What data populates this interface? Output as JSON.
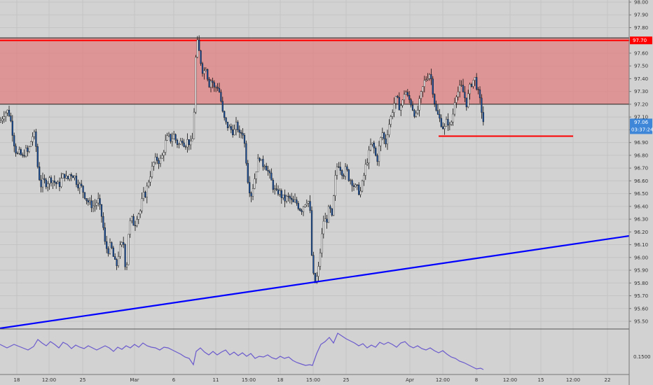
{
  "chart_data": {
    "type": "candlestick",
    "price_axis": {
      "ticks": [
        "98.00",
        "97.90",
        "97.80",
        "97.70",
        "97.60",
        "97.50",
        "97.40",
        "97.30",
        "97.20",
        "97.10",
        "97.00",
        "96.90",
        "96.80",
        "96.70",
        "96.60",
        "96.50",
        "96.40",
        "96.30",
        "96.20",
        "96.10",
        "96.00",
        "95.90",
        "95.80",
        "95.70",
        "95.60",
        "95.50"
      ],
      "range": [
        95.44,
        98.01
      ]
    },
    "time_axis": {
      "labels": [
        "18",
        "12:00",
        "25",
        "Mar",
        "6",
        "11",
        "15:00",
        "18",
        "15:00",
        "25",
        "Apr",
        "12:00",
        "8",
        "12:00",
        "15",
        "12:00",
        "22"
      ]
    },
    "last_price": {
      "value": "97.06",
      "countdown": "03:37:24",
      "color": "#3d86d8"
    },
    "zone": {
      "top": 97.72,
      "bottom": 97.2,
      "color": "#e08080"
    },
    "resistance_line": {
      "price": 97.7,
      "label": "97.70",
      "color": "#ff0000"
    },
    "support_segment": {
      "price": 96.95,
      "color": "#ff0000"
    },
    "trend_line": {
      "color": "#0000ff"
    },
    "oscillator": {
      "tick": "0.1500",
      "color": "#6a5acd"
    },
    "candles": {
      "up_color": "#ffffff",
      "down_color": "#1a4f9c",
      "points": [
        [
          0,
          97.06
        ],
        [
          6,
          97.13
        ],
        [
          12,
          97.15
        ],
        [
          16,
          97.05
        ],
        [
          20,
          96.9
        ],
        [
          24,
          96.8
        ],
        [
          28,
          96.82
        ],
        [
          32,
          96.78
        ],
        [
          36,
          96.84
        ],
        [
          40,
          96.82
        ],
        [
          46,
          96.95
        ],
        [
          50,
          96.96
        ],
        [
          54,
          96.7
        ],
        [
          58,
          96.56
        ],
        [
          62,
          96.6
        ],
        [
          66,
          96.58
        ],
        [
          72,
          96.62
        ],
        [
          78,
          96.59
        ],
        [
          84,
          96.56
        ],
        [
          88,
          96.62
        ],
        [
          92,
          96.65
        ],
        [
          96,
          96.6
        ],
        [
          100,
          96.66
        ],
        [
          106,
          96.64
        ],
        [
          110,
          96.58
        ],
        [
          116,
          96.55
        ],
        [
          120,
          96.5
        ],
        [
          124,
          96.45
        ],
        [
          128,
          96.42
        ],
        [
          134,
          96.4
        ],
        [
          140,
          96.45
        ],
        [
          146,
          96.3
        ],
        [
          150,
          96.1
        ],
        [
          154,
          96.05
        ],
        [
          158,
          96.1
        ],
        [
          162,
          96.0
        ],
        [
          166,
          95.92
        ],
        [
          170,
          96.06
        ],
        [
          176,
          96.12
        ],
        [
          180,
          95.86
        ],
        [
          184,
          96.25
        ],
        [
          188,
          96.3
        ],
        [
          192,
          96.25
        ],
        [
          196,
          96.34
        ],
        [
          200,
          96.36
        ],
        [
          204,
          96.48
        ],
        [
          208,
          96.5
        ],
        [
          212,
          96.6
        ],
        [
          216,
          96.68
        ],
        [
          220,
          96.75
        ],
        [
          224,
          96.77
        ],
        [
          228,
          96.75
        ],
        [
          232,
          96.8
        ],
        [
          236,
          96.9
        ],
        [
          240,
          96.95
        ],
        [
          244,
          96.92
        ],
        [
          248,
          96.96
        ],
        [
          252,
          96.9
        ],
        [
          256,
          96.88
        ],
        [
          260,
          96.93
        ],
        [
          264,
          96.88
        ],
        [
          268,
          96.92
        ],
        [
          272,
          96.88
        ],
        [
          276,
          96.95
        ],
        [
          278,
          97.35
        ],
        [
          280,
          97.65
        ],
        [
          282,
          97.68
        ],
        [
          286,
          97.55
        ],
        [
          290,
          97.44
        ],
        [
          294,
          97.5
        ],
        [
          298,
          97.35
        ],
        [
          302,
          97.4
        ],
        [
          306,
          97.32
        ],
        [
          310,
          97.35
        ],
        [
          314,
          97.28
        ],
        [
          318,
          97.12
        ],
        [
          322,
          97.05
        ],
        [
          326,
          97.02
        ],
        [
          330,
          97.0
        ],
        [
          334,
          96.98
        ],
        [
          338,
          97.05
        ],
        [
          342,
          96.95
        ],
        [
          346,
          97.0
        ],
        [
          350,
          96.85
        ],
        [
          354,
          96.6
        ],
        [
          358,
          96.48
        ],
        [
          362,
          96.58
        ],
        [
          366,
          96.7
        ],
        [
          370,
          96.8
        ],
        [
          374,
          96.72
        ],
        [
          378,
          96.74
        ],
        [
          382,
          96.68
        ],
        [
          386,
          96.62
        ],
        [
          390,
          96.55
        ],
        [
          394,
          96.5
        ],
        [
          398,
          96.52
        ],
        [
          402,
          96.48
        ],
        [
          406,
          96.45
        ],
        [
          410,
          96.47
        ],
        [
          414,
          96.46
        ],
        [
          418,
          96.42
        ],
        [
          422,
          96.44
        ],
        [
          426,
          96.4
        ],
        [
          430,
          96.37
        ],
        [
          434,
          96.42
        ],
        [
          438,
          96.45
        ],
        [
          442,
          96.43
        ],
        [
          446,
          95.88
        ],
        [
          450,
          95.8
        ],
        [
          454,
          95.88
        ],
        [
          458,
          96.1
        ],
        [
          462,
          96.3
        ],
        [
          466,
          96.28
        ],
        [
          470,
          96.4
        ],
        [
          474,
          96.3
        ],
        [
          478,
          96.6
        ],
        [
          482,
          96.75
        ],
        [
          486,
          96.7
        ],
        [
          490,
          96.65
        ],
        [
          494,
          96.7
        ],
        [
          498,
          96.62
        ],
        [
          502,
          96.6
        ],
        [
          506,
          96.55
        ],
        [
          510,
          96.54
        ],
        [
          514,
          96.5
        ],
        [
          518,
          96.6
        ],
        [
          522,
          96.72
        ],
        [
          526,
          96.8
        ],
        [
          530,
          96.9
        ],
        [
          534,
          96.85
        ],
        [
          538,
          96.75
        ],
        [
          542,
          96.9
        ],
        [
          546,
          96.98
        ],
        [
          550,
          96.88
        ],
        [
          554,
          97.02
        ],
        [
          558,
          97.1
        ],
        [
          562,
          97.2
        ],
        [
          566,
          97.25
        ],
        [
          570,
          97.18
        ],
        [
          574,
          97.2
        ],
        [
          578,
          97.32
        ],
        [
          582,
          97.25
        ],
        [
          586,
          97.22
        ],
        [
          590,
          97.15
        ],
        [
          594,
          97.1
        ],
        [
          598,
          97.2
        ],
        [
          602,
          97.3
        ],
        [
          606,
          97.38
        ],
        [
          610,
          97.42
        ],
        [
          614,
          97.45
        ],
        [
          618,
          97.3
        ],
        [
          622,
          97.15
        ],
        [
          626,
          97.1
        ],
        [
          630,
          97.05
        ],
        [
          634,
          97.0
        ],
        [
          638,
          97.08
        ],
        [
          642,
          97.02
        ],
        [
          646,
          97.1
        ],
        [
          650,
          97.28
        ],
        [
          654,
          97.3
        ],
        [
          658,
          97.34
        ],
        [
          662,
          97.28
        ],
        [
          666,
          97.2
        ],
        [
          670,
          97.32
        ],
        [
          674,
          97.38
        ],
        [
          678,
          97.4
        ],
        [
          682,
          97.3
        ],
        [
          686,
          97.2
        ],
        [
          690,
          97.06
        ]
      ]
    },
    "oscillator_points": [
      [
        0,
        492
      ],
      [
        10,
        497
      ],
      [
        20,
        492
      ],
      [
        30,
        496
      ],
      [
        40,
        500
      ],
      [
        48,
        495
      ],
      [
        54,
        485
      ],
      [
        60,
        490
      ],
      [
        66,
        494
      ],
      [
        72,
        488
      ],
      [
        78,
        492
      ],
      [
        84,
        497
      ],
      [
        90,
        489
      ],
      [
        96,
        492
      ],
      [
        102,
        498
      ],
      [
        108,
        493
      ],
      [
        114,
        496
      ],
      [
        120,
        498
      ],
      [
        126,
        494
      ],
      [
        132,
        497
      ],
      [
        138,
        500
      ],
      [
        144,
        497
      ],
      [
        150,
        494
      ],
      [
        156,
        497
      ],
      [
        162,
        502
      ],
      [
        168,
        496
      ],
      [
        174,
        499
      ],
      [
        180,
        494
      ],
      [
        186,
        497
      ],
      [
        192,
        492
      ],
      [
        198,
        496
      ],
      [
        204,
        490
      ],
      [
        210,
        494
      ],
      [
        216,
        496
      ],
      [
        222,
        497
      ],
      [
        228,
        500
      ],
      [
        234,
        496
      ],
      [
        240,
        497
      ],
      [
        246,
        500
      ],
      [
        252,
        503
      ],
      [
        258,
        506
      ],
      [
        264,
        510
      ],
      [
        270,
        512
      ],
      [
        276,
        521
      ],
      [
        280,
        502
      ],
      [
        286,
        497
      ],
      [
        292,
        503
      ],
      [
        298,
        507
      ],
      [
        304,
        502
      ],
      [
        310,
        507
      ],
      [
        316,
        503
      ],
      [
        322,
        500
      ],
      [
        328,
        507
      ],
      [
        334,
        503
      ],
      [
        340,
        508
      ],
      [
        346,
        504
      ],
      [
        352,
        509
      ],
      [
        358,
        505
      ],
      [
        364,
        512
      ],
      [
        370,
        509
      ],
      [
        376,
        510
      ],
      [
        382,
        507
      ],
      [
        388,
        511
      ],
      [
        394,
        513
      ],
      [
        400,
        509
      ],
      [
        406,
        512
      ],
      [
        412,
        510
      ],
      [
        418,
        515
      ],
      [
        424,
        518
      ],
      [
        430,
        520
      ],
      [
        436,
        522
      ],
      [
        442,
        521
      ],
      [
        446,
        522
      ],
      [
        452,
        505
      ],
      [
        458,
        492
      ],
      [
        464,
        488
      ],
      [
        470,
        482
      ],
      [
        476,
        490
      ],
      [
        482,
        476
      ],
      [
        488,
        480
      ],
      [
        494,
        484
      ],
      [
        500,
        487
      ],
      [
        506,
        490
      ],
      [
        512,
        494
      ],
      [
        518,
        491
      ],
      [
        524,
        497
      ],
      [
        530,
        493
      ],
      [
        536,
        496
      ],
      [
        542,
        489
      ],
      [
        548,
        492
      ],
      [
        554,
        489
      ],
      [
        560,
        492
      ],
      [
        566,
        496
      ],
      [
        572,
        490
      ],
      [
        578,
        488
      ],
      [
        584,
        494
      ],
      [
        590,
        497
      ],
      [
        596,
        494
      ],
      [
        602,
        498
      ],
      [
        608,
        500
      ],
      [
        614,
        497
      ],
      [
        620,
        501
      ],
      [
        626,
        504
      ],
      [
        632,
        501
      ],
      [
        638,
        506
      ],
      [
        644,
        510
      ],
      [
        650,
        512
      ],
      [
        656,
        516
      ],
      [
        662,
        518
      ],
      [
        668,
        521
      ],
      [
        674,
        524
      ],
      [
        680,
        527
      ],
      [
        686,
        526
      ],
      [
        690,
        528
      ]
    ]
  }
}
